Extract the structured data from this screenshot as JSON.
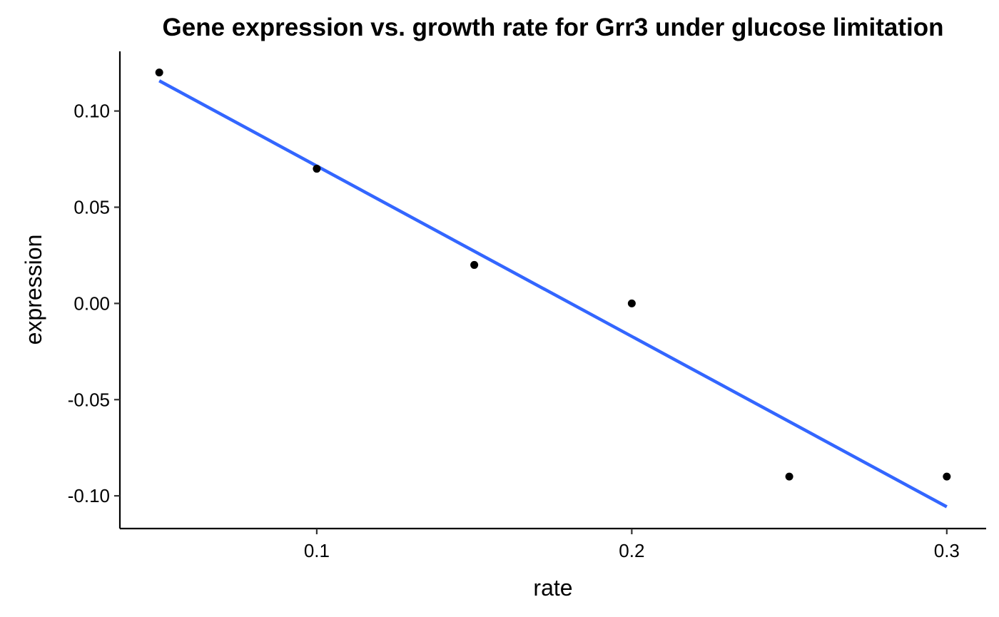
{
  "chart_data": {
    "type": "scatter",
    "title": "Gene expression vs. growth rate for Grr3 under glucose limitation",
    "xlabel": "rate",
    "ylabel": "expression",
    "xlim": [
      0.0375,
      0.3125
    ],
    "ylim": [
      -0.117,
      0.131
    ],
    "x_ticks": [
      0.1,
      0.2,
      0.3
    ],
    "x_tick_labels": [
      "0.1",
      "0.2",
      "0.3"
    ],
    "y_ticks": [
      0.1,
      0.05,
      0.0,
      -0.05,
      -0.1
    ],
    "y_tick_labels": [
      "0.10",
      "0.05",
      "0.00",
      "-0.05",
      "-0.10"
    ],
    "grid": false,
    "series": [
      {
        "type": "scatter",
        "color": "#000000",
        "points": [
          {
            "x": 0.05,
            "y": 0.12
          },
          {
            "x": 0.1,
            "y": 0.07
          },
          {
            "x": 0.15,
            "y": 0.02
          },
          {
            "x": 0.2,
            "y": 0.0
          },
          {
            "x": 0.25,
            "y": -0.09
          },
          {
            "x": 0.3,
            "y": -0.09
          }
        ]
      },
      {
        "type": "line",
        "color": "#3366FF",
        "points": [
          {
            "x": 0.05,
            "y": 0.1157
          },
          {
            "x": 0.3,
            "y": -0.1057
          }
        ]
      }
    ]
  }
}
